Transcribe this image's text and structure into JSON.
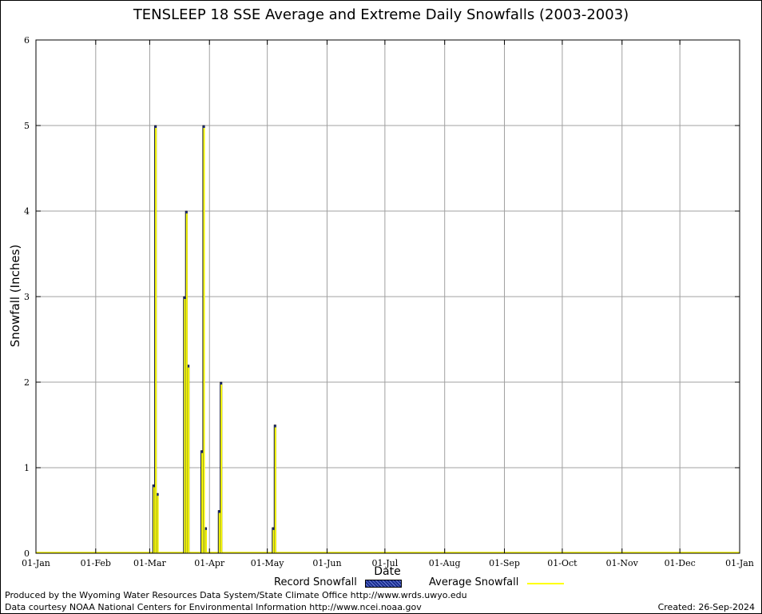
{
  "chart_data": {
    "type": "bar",
    "title": "TENSLEEP 18 SSE Average and Extreme Daily Snowfalls (2003-2003)",
    "xlabel": "Date",
    "ylabel": "Snowfall (Inches)",
    "ylim": [
      0,
      6
    ],
    "yticks": [
      "0",
      "1",
      "2",
      "3",
      "4",
      "5",
      "6"
    ],
    "xticks": [
      "01-Jan",
      "01-Feb",
      "01-Mar",
      "01-Apr",
      "01-May",
      "01-Jun",
      "01-Jul",
      "01-Aug",
      "01-Sep",
      "01-Oct",
      "01-Nov",
      "01-Dec",
      "01-Jan"
    ],
    "grid": true,
    "legend_placement": "bottom",
    "colors": {
      "record": "#1b2f8f",
      "average": "#ffff00"
    },
    "series": [
      {
        "name": "Record Snowfall",
        "points": [
          [
            "2003-03-03",
            0.8
          ],
          [
            "2003-03-04",
            5.0
          ],
          [
            "2003-03-05",
            0.7
          ],
          [
            "2003-03-19",
            3.0
          ],
          [
            "2003-03-20",
            4.0
          ],
          [
            "2003-03-21",
            2.2
          ],
          [
            "2003-03-28",
            1.2
          ],
          [
            "2003-03-29",
            5.0
          ],
          [
            "2003-03-30",
            0.3
          ],
          [
            "2003-04-06",
            0.5
          ],
          [
            "2003-04-07",
            2.0
          ],
          [
            "2003-05-04",
            0.3
          ],
          [
            "2003-05-05",
            1.5
          ]
        ]
      },
      {
        "name": "Average Snowfall",
        "points": [
          [
            "2003-03-03",
            0.8
          ],
          [
            "2003-03-04",
            5.0
          ],
          [
            "2003-03-05",
            0.7
          ],
          [
            "2003-03-19",
            3.0
          ],
          [
            "2003-03-20",
            4.0
          ],
          [
            "2003-03-21",
            2.2
          ],
          [
            "2003-03-28",
            1.2
          ],
          [
            "2003-03-29",
            5.0
          ],
          [
            "2003-03-30",
            0.3
          ],
          [
            "2003-04-06",
            0.5
          ],
          [
            "2003-04-07",
            2.0
          ],
          [
            "2003-05-04",
            0.3
          ],
          [
            "2003-05-05",
            1.5
          ]
        ]
      }
    ]
  },
  "legend": {
    "record_label": "Record Snowfall",
    "average_label": "Average Snowfall"
  },
  "footer": {
    "credit_line1": "Produced by the Wyoming Water Resources Data System/State Climate Office http://www.wrds.uwyo.edu",
    "credit_line2": "Data courtesy NOAA National Centers for Environmental Information http://www.ncei.noaa.gov",
    "created": "Created: 26-Sep-2024"
  }
}
